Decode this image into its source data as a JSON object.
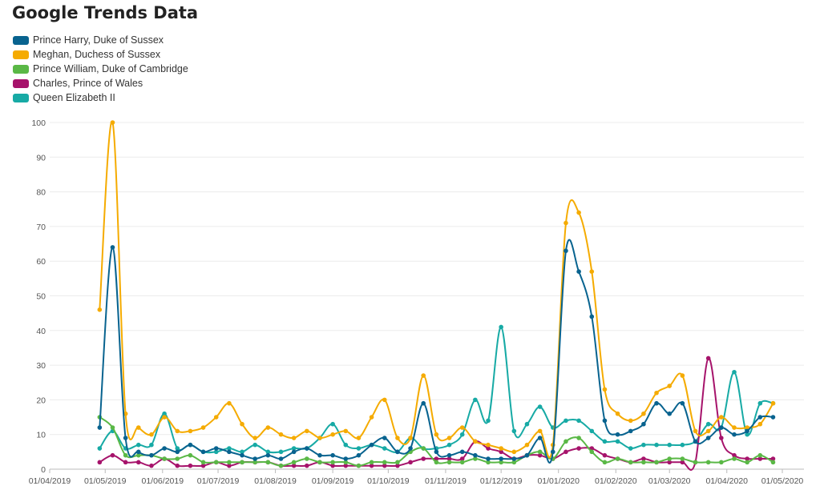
{
  "title": "Google Trends Data",
  "chart_data": {
    "type": "line",
    "title": "Google Trends Data",
    "xlabel": "",
    "ylabel": "",
    "ylim": [
      0,
      100
    ],
    "yticks": [
      0,
      10,
      20,
      30,
      40,
      50,
      60,
      70,
      80,
      90,
      100
    ],
    "xlim": [
      "2019-04-01",
      "2020-05-01"
    ],
    "xticks": [
      "01/04/2019",
      "01/05/2019",
      "01/06/2019",
      "01/07/2019",
      "01/08/2019",
      "01/09/2019",
      "01/10/2019",
      "01/11/2019",
      "01/12/2019",
      "01/01/2020",
      "01/02/2020",
      "01/03/2020",
      "01/04/2020",
      "01/05/2020"
    ],
    "grid": "horizontal",
    "legend": "top-left",
    "x": [
      "2019-04-28",
      "2019-05-05",
      "2019-05-12",
      "2019-05-19",
      "2019-05-26",
      "2019-06-02",
      "2019-06-09",
      "2019-06-16",
      "2019-06-23",
      "2019-06-30",
      "2019-07-07",
      "2019-07-14",
      "2019-07-21",
      "2019-07-28",
      "2019-08-04",
      "2019-08-11",
      "2019-08-18",
      "2019-08-25",
      "2019-09-01",
      "2019-09-08",
      "2019-09-15",
      "2019-09-22",
      "2019-09-29",
      "2019-10-06",
      "2019-10-13",
      "2019-10-20",
      "2019-10-27",
      "2019-11-03",
      "2019-11-10",
      "2019-11-17",
      "2019-11-24",
      "2019-12-01",
      "2019-12-08",
      "2019-12-15",
      "2019-12-22",
      "2019-12-29",
      "2020-01-05",
      "2020-01-12",
      "2020-01-19",
      "2020-01-26",
      "2020-02-02",
      "2020-02-09",
      "2020-02-16",
      "2020-02-23",
      "2020-03-01",
      "2020-03-08",
      "2020-03-15",
      "2020-03-22",
      "2020-03-29",
      "2020-04-05",
      "2020-04-12",
      "2020-04-19",
      "2020-04-26"
    ],
    "series": [
      {
        "name": "Prince Harry, Duke of Sussex",
        "color": "#08638f",
        "values": [
          12,
          64,
          9,
          5,
          4,
          6,
          5,
          7,
          5,
          6,
          5,
          4,
          3,
          4,
          3,
          5,
          6,
          4,
          4,
          3,
          4,
          7,
          9,
          5,
          6,
          19,
          5,
          4,
          5,
          4,
          3,
          3,
          3,
          4,
          9,
          5,
          63,
          57,
          44,
          14,
          10,
          11,
          13,
          19,
          16,
          19,
          8,
          9,
          12,
          10,
          11,
          15,
          15
        ]
      },
      {
        "name": "Meghan, Duchess of Sussex",
        "color": "#f5ab00",
        "values": [
          46,
          100,
          16,
          12,
          10,
          15,
          11,
          11,
          12,
          15,
          19,
          13,
          9,
          12,
          10,
          9,
          11,
          9,
          10,
          11,
          9,
          15,
          20,
          9,
          9,
          27,
          10,
          9,
          12,
          8,
          7,
          6,
          5,
          7,
          11,
          7,
          71,
          74,
          57,
          23,
          16,
          14,
          16,
          22,
          24,
          27,
          11,
          11,
          15,
          12,
          12,
          13,
          19
        ]
      },
      {
        "name": "Prince William, Duke of Cambridge",
        "color": "#5ab846",
        "values": [
          15,
          12,
          4,
          4,
          4,
          3,
          3,
          4,
          2,
          2,
          2,
          2,
          2,
          2,
          1,
          2,
          3,
          2,
          2,
          2,
          1,
          2,
          2,
          2,
          5,
          6,
          2,
          2,
          2,
          3,
          2,
          2,
          2,
          4,
          5,
          3,
          8,
          9,
          5,
          2,
          3,
          2,
          2,
          2,
          3,
          3,
          2,
          2,
          2,
          3,
          2,
          4,
          2
        ]
      },
      {
        "name": "Charles, Prince of Wales",
        "color": "#a6136b",
        "values": [
          2,
          4,
          2,
          2,
          1,
          3,
          1,
          1,
          1,
          2,
          1,
          2,
          2,
          2,
          1,
          1,
          1,
          2,
          1,
          1,
          1,
          1,
          1,
          1,
          2,
          3,
          3,
          3,
          3,
          8,
          6,
          5,
          3,
          4,
          4,
          3,
          5,
          6,
          6,
          4,
          3,
          2,
          3,
          2,
          2,
          2,
          2,
          32,
          9,
          4,
          3,
          3,
          3
        ]
      },
      {
        "name": "Queen Elizabeth II",
        "color": "#17aaa5",
        "values": [
          6,
          11,
          6,
          7,
          7,
          16,
          6,
          7,
          5,
          5,
          6,
          5,
          7,
          5,
          5,
          6,
          6,
          9,
          13,
          7,
          6,
          7,
          6,
          5,
          9,
          6,
          6,
          7,
          10,
          20,
          14,
          41,
          11,
          13,
          18,
          12,
          14,
          14,
          11,
          8,
          8,
          6,
          7,
          7,
          7,
          7,
          8,
          13,
          12,
          28,
          10,
          19,
          19
        ]
      }
    ]
  }
}
